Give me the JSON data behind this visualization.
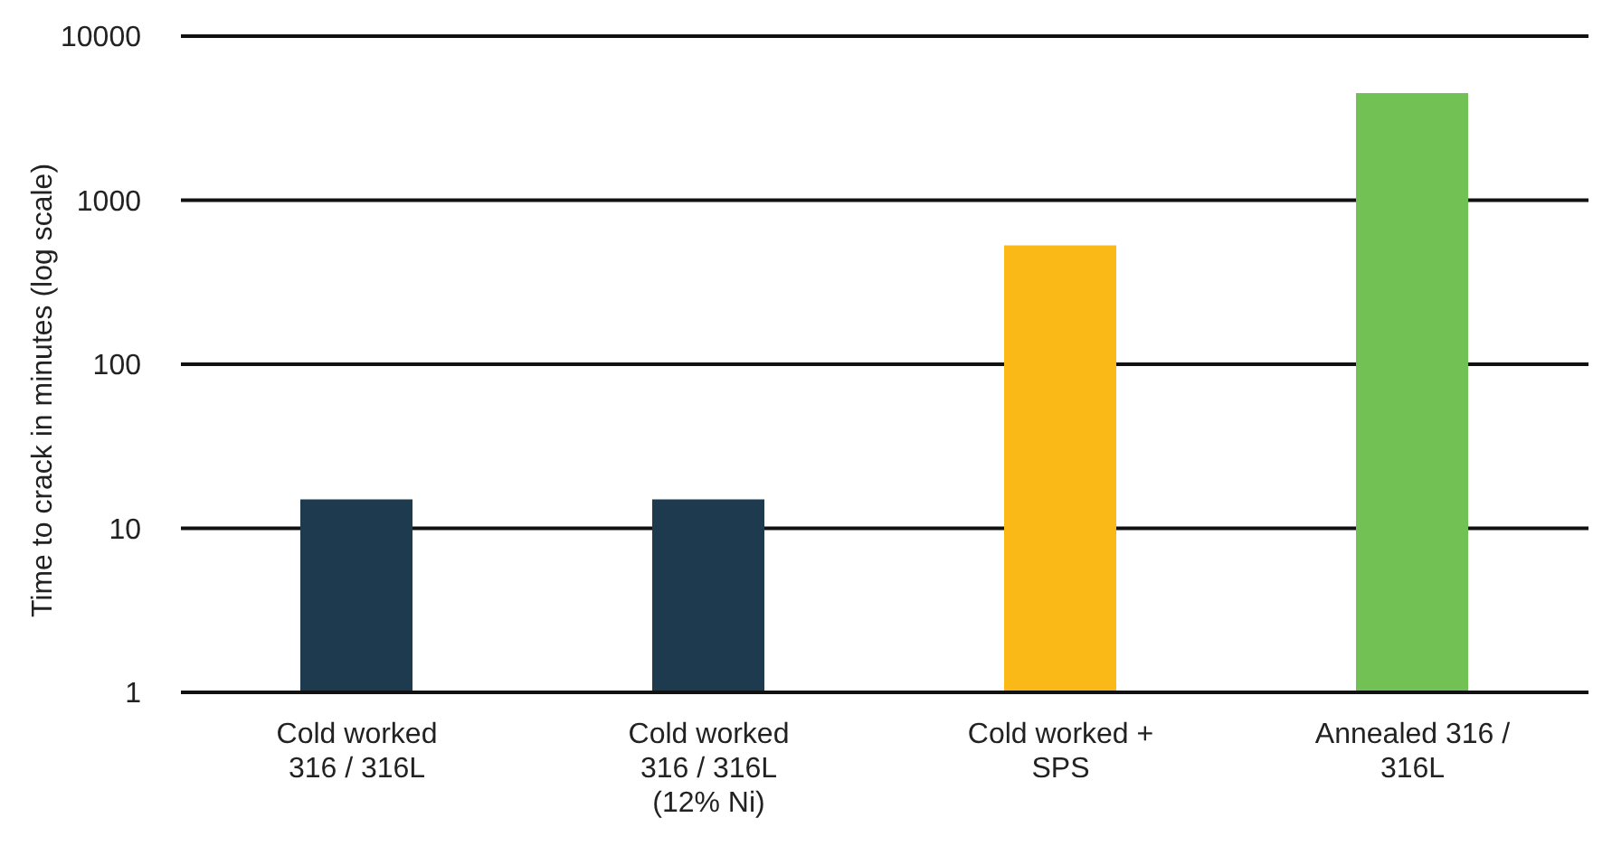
{
  "chart_data": {
    "type": "bar",
    "ylabel": "Time to crack in minutes (log scale)",
    "categories": [
      "Cold worked 316 / 316L",
      "Cold worked 316 / 316L (12% Ni)",
      "Cold worked + SPS",
      "Annealed 316 / 316L"
    ],
    "values": [
      15,
      15,
      530,
      4500
    ],
    "colors": [
      "#1e3a4f",
      "#1e3a4f",
      "#fbb917",
      "#72c155"
    ],
    "log": true,
    "ylim": [
      1,
      10000
    ],
    "yticks": [
      1,
      10,
      100,
      1000,
      10000
    ],
    "grid": "y"
  }
}
